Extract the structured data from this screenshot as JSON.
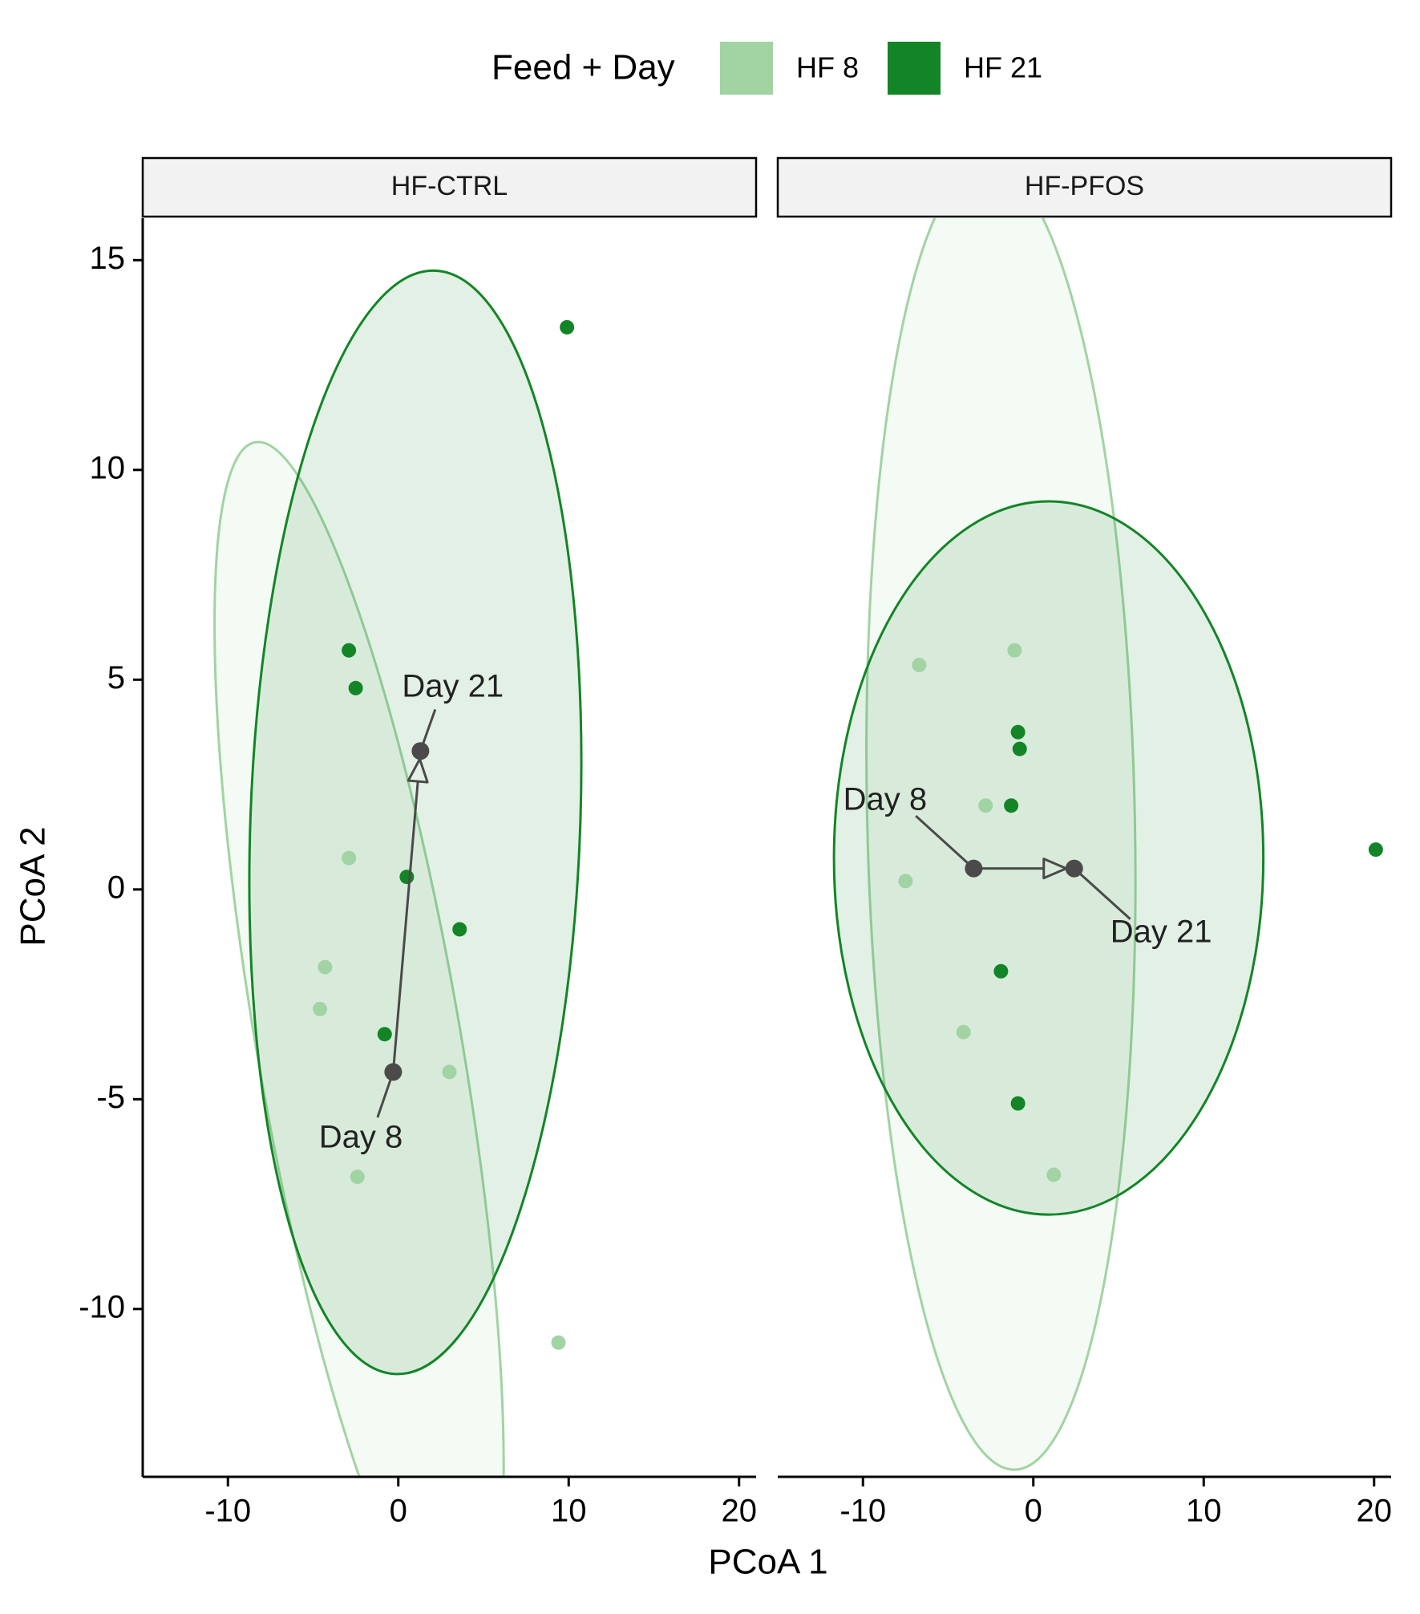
{
  "chart_data": {
    "type": "scatter",
    "xlabel": "PCoA 1",
    "ylabel": "PCoA 2",
    "xlim": [
      -15,
      21
    ],
    "ylim": [
      -14,
      15
    ],
    "x_ticks": [
      -10,
      0,
      10,
      20
    ],
    "y_ticks": [
      -10,
      -5,
      0,
      5,
      10,
      15
    ],
    "x_tick_labels": [
      "-10",
      "0",
      "10",
      "20"
    ],
    "y_tick_labels": [
      "-10",
      "-5",
      "0",
      "5",
      "10",
      "15"
    ],
    "legend": {
      "title": "Feed + Day",
      "position": "top",
      "entries": [
        {
          "label": "HF 8",
          "color": "#a1d3a3"
        },
        {
          "label": "HF 21",
          "color": "#138526"
        }
      ]
    },
    "centroid_color": "#4a4a4a",
    "panels": [
      {
        "title": "HF-CTRL",
        "series": [
          {
            "name": "HF 8",
            "color": "#a1d3a3",
            "points": [
              [
                -2.9,
                0.75
              ],
              [
                -4.3,
                -1.85
              ],
              [
                -4.6,
                -2.85
              ],
              [
                3.0,
                -4.35
              ],
              [
                -2.4,
                -6.85
              ],
              [
                9.4,
                -10.8
              ]
            ]
          },
          {
            "name": "HF 21",
            "color": "#138526",
            "points": [
              [
                -2.9,
                5.7
              ],
              [
                -2.5,
                4.8
              ],
              [
                0.5,
                0.3
              ],
              [
                3.6,
                -0.95
              ],
              [
                -0.8,
                -3.45
              ],
              [
                9.9,
                13.4
              ]
            ]
          }
        ],
        "ellipses": [
          {
            "series": "HF 8",
            "cx": -2.3,
            "cy": -3.7,
            "rx": 15.6,
            "ry": 4.5,
            "angle_deg": -67
          },
          {
            "series": "HF 21",
            "cx": 1.0,
            "cy": 1.6,
            "rx": 13.2,
            "ry": 9.5,
            "angle_deg": 85
          }
        ],
        "centroids": [
          {
            "label": "Day 8",
            "x": -0.3,
            "y": -4.35,
            "text_x": -2.2,
            "text_y": -5.95
          },
          {
            "label": "Day 21",
            "x": 1.3,
            "y": 3.3,
            "text_x": 3.2,
            "text_y": 4.8
          }
        ]
      },
      {
        "title": "HF-PFOS",
        "series": [
          {
            "name": "HF 8",
            "color": "#a1d3a3",
            "points": [
              [
                -6.7,
                5.35
              ],
              [
                -1.1,
                5.7
              ],
              [
                -2.8,
                2.0
              ],
              [
                -7.5,
                0.2
              ],
              [
                -4.1,
                -3.4
              ],
              [
                1.2,
                -6.8
              ]
            ]
          },
          {
            "name": "HF 21",
            "color": "#138526",
            "points": [
              [
                -0.9,
                3.75
              ],
              [
                -0.8,
                3.35
              ],
              [
                -1.3,
                2.0
              ],
              [
                -1.9,
                -1.95
              ],
              [
                -0.9,
                -5.1
              ],
              [
                20.1,
                0.95
              ]
            ]
          }
        ],
        "ellipses": [
          {
            "series": "HF 8",
            "cx": -1.9,
            "cy": 1.75,
            "rx": 15.6,
            "ry": 7.8,
            "angle_deg": 93
          },
          {
            "series": "HF 21",
            "cx": 0.9,
            "cy": 0.75,
            "rx": 12.6,
            "ry": 8.5,
            "angle_deg": 0
          }
        ],
        "centroids": [
          {
            "label": "Day 8",
            "x": -3.5,
            "y": 0.5,
            "text_x": -8.7,
            "text_y": 2.1
          },
          {
            "label": "Day 21",
            "x": 2.4,
            "y": 0.5,
            "text_x": 7.5,
            "text_y": -1.05
          }
        ]
      }
    ]
  }
}
